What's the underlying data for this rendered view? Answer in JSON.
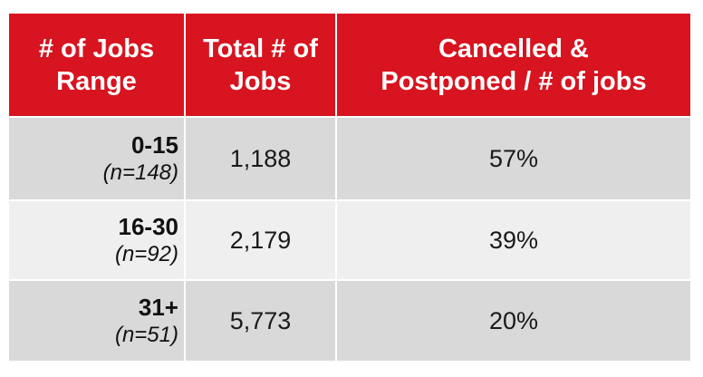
{
  "table": {
    "header": [
      "# of Jobs\nRange",
      "Total # of\nJobs",
      "Cancelled &\nPostponed / # of jobs"
    ],
    "rows": [
      [
        "0-15",
        "(n=148)",
        "1,188",
        "57%"
      ],
      [
        "16-30",
        "(n=92)",
        "2,179",
        "39%"
      ],
      [
        "31+",
        "(n=51)",
        "5,773",
        "20%"
      ]
    ]
  }
}
